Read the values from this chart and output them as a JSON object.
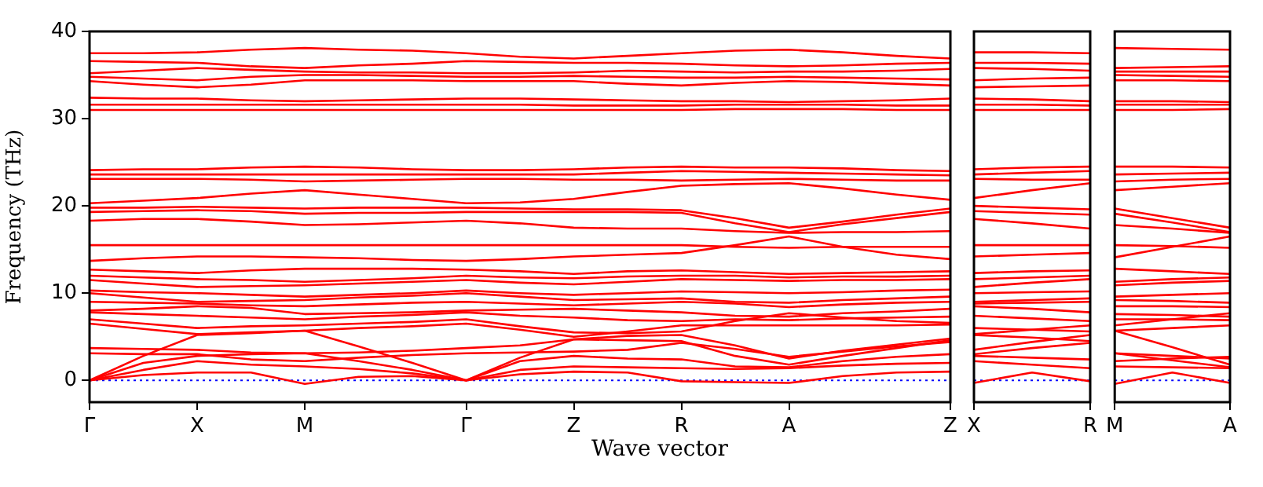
{
  "chart_data": [
    {
      "type": "line",
      "xlabel": "Wave vector",
      "ylabel": "Frequency (THz)",
      "ylim": [
        -2.5,
        40
      ],
      "yticks": [
        0,
        10,
        20,
        30,
        40
      ],
      "categories": [
        "Γ",
        null,
        "X",
        null,
        "M",
        null,
        null,
        "Γ",
        null,
        "Z",
        null,
        "R",
        null,
        "A",
        null,
        null,
        "Z"
      ],
      "grid": false,
      "legend": false,
      "marker": "none",
      "line_style": "solid",
      "ref_lines": [
        {
          "axis": "y",
          "value": 0,
          "color": "#0000ff",
          "line_style": "dotted"
        }
      ],
      "series": [
        {
          "color": "#ff0000",
          "values": [
            0,
            0.6,
            0.9,
            0.9,
            -0.4,
            0.4,
            0.5,
            0,
            0.7,
            1.0,
            0.9,
            -0.1,
            -0.2,
            -0.3,
            0.5,
            0.9,
            1.0
          ]
        },
        {
          "color": "#ff0000",
          "values": [
            0,
            1.2,
            2.2,
            1.8,
            1.6,
            1.3,
            0.8,
            0,
            1.2,
            1.6,
            1.5,
            1.4,
            1.3,
            1.4,
            1.7,
            1.9,
            2.0
          ]
        },
        {
          "color": "#ff0000",
          "values": [
            0,
            2.0,
            2.8,
            3.0,
            3.1,
            2.2,
            1.2,
            0,
            2.2,
            2.8,
            2.5,
            2.4,
            1.6,
            1.5,
            2.2,
            2.7,
            3.0
          ]
        },
        {
          "color": "#ff0000",
          "values": [
            0,
            2.8,
            5.2,
            5.4,
            5.7,
            3.9,
            2.0,
            0,
            2.6,
            4.7,
            4.6,
            4.5,
            2.8,
            1.8,
            2.8,
            3.7,
            4.6
          ]
        },
        {
          "color": "#ff0000",
          "values": [
            3.1,
            3.0,
            3.0,
            2.4,
            2.2,
            2.6,
            2.9,
            3.1,
            3.2,
            3.3,
            3.5,
            4.3,
            3.6,
            2.7,
            3.3,
            3.9,
            4.4
          ]
        },
        {
          "color": "#ff0000",
          "values": [
            3.7,
            3.6,
            3.5,
            3.2,
            3.1,
            3.2,
            3.4,
            3.7,
            4.0,
            4.7,
            5.1,
            5.2,
            4.0,
            2.5,
            3.4,
            4.1,
            4.8
          ]
        },
        {
          "color": "#ff0000",
          "values": [
            6.5,
            5.9,
            5.3,
            5.5,
            5.7,
            6.0,
            6.2,
            6.5,
            5.8,
            5.0,
            5.6,
            6.3,
            6.3,
            6.3,
            6.3,
            6.3,
            6.4
          ]
        },
        {
          "color": "#ff0000",
          "values": [
            7.0,
            6.5,
            6.0,
            6.2,
            6.3,
            6.5,
            6.7,
            7.0,
            6.2,
            5.5,
            5.4,
            5.6,
            6.8,
            7.7,
            7.2,
            6.8,
            6.6
          ]
        },
        {
          "color": "#ff0000",
          "values": [
            7.8,
            7.6,
            7.4,
            7.2,
            7.0,
            7.3,
            7.5,
            7.8,
            7.4,
            7.2,
            6.9,
            6.8,
            7.0,
            6.9,
            7.1,
            7.2,
            7.3
          ]
        },
        {
          "color": "#ff0000",
          "values": [
            8.0,
            8.2,
            8.5,
            8.3,
            7.6,
            7.7,
            7.8,
            8.0,
            8.1,
            8.2,
            8.0,
            7.8,
            7.4,
            7.3,
            7.7,
            7.9,
            8.2
          ]
        },
        {
          "color": "#ff0000",
          "values": [
            9.0,
            8.9,
            8.8,
            8.6,
            8.5,
            8.7,
            8.9,
            9.0,
            8.8,
            8.6,
            8.8,
            9.0,
            8.8,
            8.4,
            8.7,
            8.9,
            9.0
          ]
        },
        {
          "color": "#ff0000",
          "values": [
            10.0,
            9.5,
            9.0,
            9.1,
            9.2,
            9.5,
            9.7,
            10.0,
            9.6,
            9.2,
            9.3,
            9.4,
            9.0,
            8.9,
            9.2,
            9.4,
            9.6
          ]
        },
        {
          "color": "#ff0000",
          "values": [
            10.3,
            10.1,
            10.0,
            9.8,
            9.6,
            9.8,
            10.0,
            10.3,
            10.0,
            9.8,
            10.0,
            10.2,
            10.1,
            10.0,
            10.1,
            10.3,
            10.4
          ]
        },
        {
          "color": "#ff0000",
          "values": [
            11.5,
            11.1,
            10.7,
            10.8,
            10.9,
            11.1,
            11.3,
            11.5,
            11.2,
            11.0,
            11.3,
            11.6,
            11.5,
            11.4,
            11.5,
            11.5,
            11.6
          ]
        },
        {
          "color": "#ff0000",
          "values": [
            12.0,
            11.8,
            11.6,
            11.5,
            11.3,
            11.5,
            11.7,
            12.0,
            11.8,
            11.7,
            11.9,
            12.0,
            12.0,
            11.8,
            11.9,
            11.9,
            12.0
          ]
        },
        {
          "color": "#ff0000",
          "values": [
            12.7,
            12.5,
            12.3,
            12.6,
            12.8,
            12.8,
            12.8,
            12.7,
            12.5,
            12.2,
            12.5,
            12.6,
            12.4,
            12.2,
            12.3,
            12.4,
            12.5
          ]
        },
        {
          "color": "#ff0000",
          "values": [
            13.7,
            14.0,
            14.2,
            14.2,
            14.1,
            14.0,
            13.8,
            13.7,
            13.9,
            14.2,
            14.4,
            14.6,
            15.5,
            16.5,
            15.3,
            14.4,
            13.9
          ]
        },
        {
          "color": "#ff0000",
          "values": [
            15.5,
            15.5,
            15.5,
            15.5,
            15.5,
            15.5,
            15.5,
            15.5,
            15.5,
            15.5,
            15.5,
            15.5,
            15.3,
            15.2,
            15.3,
            15.3,
            15.3
          ]
        },
        {
          "color": "#ff0000",
          "values": [
            18.3,
            18.5,
            18.5,
            18.2,
            17.8,
            17.9,
            18.1,
            18.3,
            18.0,
            17.5,
            17.4,
            17.4,
            17.1,
            16.9,
            17.0,
            17.0,
            17.1
          ]
        },
        {
          "color": "#ff0000",
          "values": [
            19.3,
            19.4,
            19.5,
            19.4,
            19.1,
            19.2,
            19.2,
            19.3,
            19.3,
            19.3,
            19.3,
            19.2,
            18.0,
            17.0,
            17.9,
            18.6,
            19.3
          ]
        },
        {
          "color": "#ff0000",
          "values": [
            19.8,
            19.8,
            19.9,
            19.8,
            19.7,
            19.8,
            19.8,
            19.8,
            19.7,
            19.6,
            19.6,
            19.5,
            18.6,
            17.5,
            18.2,
            19.0,
            19.7
          ]
        },
        {
          "color": "#ff0000",
          "values": [
            20.3,
            20.6,
            20.9,
            21.4,
            21.8,
            21.3,
            20.8,
            20.3,
            20.4,
            20.8,
            21.6,
            22.3,
            22.5,
            22.6,
            22.0,
            21.3,
            20.7
          ]
        },
        {
          "color": "#ff0000",
          "values": [
            23.1,
            23.1,
            23.1,
            23.0,
            22.8,
            22.9,
            23.0,
            23.1,
            23.1,
            23.0,
            23.0,
            22.9,
            23.0,
            23.1,
            23.0,
            22.9,
            22.9
          ]
        },
        {
          "color": "#ff0000",
          "values": [
            23.6,
            23.6,
            23.6,
            23.6,
            23.6,
            23.6,
            23.6,
            23.6,
            23.6,
            23.6,
            23.8,
            24.0,
            23.9,
            23.8,
            23.7,
            23.6,
            23.5
          ]
        },
        {
          "color": "#ff0000",
          "values": [
            24.1,
            24.2,
            24.2,
            24.4,
            24.5,
            24.4,
            24.2,
            24.1,
            24.1,
            24.2,
            24.4,
            24.5,
            24.4,
            24.4,
            24.3,
            24.1,
            24.0
          ]
        },
        {
          "color": "#ff0000",
          "values": [
            31.0,
            31.0,
            31.0,
            31.0,
            31.0,
            31.0,
            31.0,
            31.0,
            31.0,
            31.0,
            31.0,
            31.0,
            31.1,
            31.1,
            31.1,
            31.0,
            31.0
          ]
        },
        {
          "color": "#ff0000",
          "values": [
            31.6,
            31.6,
            31.6,
            31.6,
            31.6,
            31.6,
            31.6,
            31.6,
            31.6,
            31.5,
            31.5,
            31.5,
            31.6,
            31.6,
            31.6,
            31.5,
            31.5
          ]
        },
        {
          "color": "#ff0000",
          "values": [
            32.4,
            32.3,
            32.3,
            32.1,
            32.0,
            32.1,
            32.2,
            32.3,
            32.3,
            32.2,
            32.1,
            32.0,
            32.0,
            31.9,
            32.0,
            32.1,
            32.3
          ]
        },
        {
          "color": "#ff0000",
          "values": [
            34.3,
            33.9,
            33.6,
            33.9,
            34.4,
            34.4,
            34.4,
            34.3,
            34.3,
            34.3,
            34.0,
            33.8,
            34.1,
            34.3,
            34.2,
            34.0,
            33.8
          ]
        },
        {
          "color": "#ff0000",
          "values": [
            34.8,
            34.6,
            34.4,
            34.8,
            35.0,
            35.0,
            34.9,
            34.8,
            34.8,
            34.9,
            34.8,
            34.7,
            34.7,
            34.8,
            34.7,
            34.6,
            34.5
          ]
        },
        {
          "color": "#ff0000",
          "values": [
            35.2,
            35.5,
            35.8,
            35.6,
            35.4,
            35.3,
            35.3,
            35.2,
            35.2,
            35.3,
            35.5,
            35.4,
            35.3,
            35.4,
            35.4,
            35.5,
            35.7
          ]
        },
        {
          "color": "#ff0000",
          "values": [
            36.6,
            36.5,
            36.4,
            36.0,
            35.8,
            36.1,
            36.3,
            36.6,
            36.5,
            36.4,
            36.4,
            36.3,
            36.1,
            36.0,
            36.1,
            36.3,
            36.4
          ]
        },
        {
          "color": "#ff0000",
          "values": [
            37.5,
            37.5,
            37.6,
            37.9,
            38.1,
            37.9,
            37.8,
            37.5,
            37.1,
            36.9,
            37.2,
            37.5,
            37.8,
            37.9,
            37.6,
            37.2,
            36.9
          ]
        }
      ]
    },
    {
      "type": "line",
      "ylim": [
        -2.5,
        40
      ],
      "yticks": [
        0,
        10,
        20,
        30,
        40
      ],
      "tick_labels": "x",
      "categories": [
        "X",
        null,
        "R"
      ],
      "grid": false,
      "legend": false,
      "marker": "none",
      "line_style": "solid",
      "ref_lines": [
        {
          "axis": "y",
          "value": 0,
          "color": "#0000ff",
          "line_style": "dotted"
        }
      ],
      "series": [
        {
          "color": "#ff0000",
          "values": [
            -0.3,
            0.9,
            -0.1
          ]
        },
        {
          "color": "#ff0000",
          "values": [
            2.2,
            1.8,
            1.4
          ]
        },
        {
          "color": "#ff0000",
          "values": [
            2.8,
            2.6,
            2.4
          ]
        },
        {
          "color": "#ff0000",
          "values": [
            5.2,
            4.9,
            4.5
          ]
        },
        {
          "color": "#ff0000",
          "values": [
            3.0,
            3.7,
            4.3
          ]
        },
        {
          "color": "#ff0000",
          "values": [
            3.5,
            4.4,
            5.2
          ]
        },
        {
          "color": "#ff0000",
          "values": [
            5.3,
            5.8,
            6.3
          ]
        },
        {
          "color": "#ff0000",
          "values": [
            6.0,
            5.8,
            5.6
          ]
        },
        {
          "color": "#ff0000",
          "values": [
            7.4,
            7.1,
            6.8
          ]
        },
        {
          "color": "#ff0000",
          "values": [
            8.5,
            8.2,
            7.8
          ]
        },
        {
          "color": "#ff0000",
          "values": [
            8.8,
            8.9,
            9.0
          ]
        },
        {
          "color": "#ff0000",
          "values": [
            9.0,
            9.2,
            9.4
          ]
        },
        {
          "color": "#ff0000",
          "values": [
            10.0,
            10.1,
            10.2
          ]
        },
        {
          "color": "#ff0000",
          "values": [
            10.7,
            11.2,
            11.6
          ]
        },
        {
          "color": "#ff0000",
          "values": [
            11.6,
            11.8,
            12.0
          ]
        },
        {
          "color": "#ff0000",
          "values": [
            12.3,
            12.5,
            12.6
          ]
        },
        {
          "color": "#ff0000",
          "values": [
            14.2,
            14.4,
            14.6
          ]
        },
        {
          "color": "#ff0000",
          "values": [
            15.5,
            15.5,
            15.5
          ]
        },
        {
          "color": "#ff0000",
          "values": [
            18.5,
            18.0,
            17.4
          ]
        },
        {
          "color": "#ff0000",
          "values": [
            19.4,
            19.2,
            19.0
          ]
        },
        {
          "color": "#ff0000",
          "values": [
            20.0,
            19.8,
            19.6
          ]
        },
        {
          "color": "#ff0000",
          "values": [
            20.9,
            21.8,
            22.6
          ]
        },
        {
          "color": "#ff0000",
          "values": [
            23.1,
            23.0,
            23.0
          ]
        },
        {
          "color": "#ff0000",
          "values": [
            23.6,
            23.8,
            24.0
          ]
        },
        {
          "color": "#ff0000",
          "values": [
            24.2,
            24.4,
            24.5
          ]
        },
        {
          "color": "#ff0000",
          "values": [
            31.0,
            31.0,
            31.0
          ]
        },
        {
          "color": "#ff0000",
          "values": [
            31.6,
            31.6,
            31.5
          ]
        },
        {
          "color": "#ff0000",
          "values": [
            32.3,
            32.2,
            32.0
          ]
        },
        {
          "color": "#ff0000",
          "values": [
            33.6,
            33.7,
            33.8
          ]
        },
        {
          "color": "#ff0000",
          "values": [
            34.4,
            34.6,
            34.7
          ]
        },
        {
          "color": "#ff0000",
          "values": [
            35.8,
            35.7,
            35.5
          ]
        },
        {
          "color": "#ff0000",
          "values": [
            36.4,
            36.4,
            36.3
          ]
        },
        {
          "color": "#ff0000",
          "values": [
            37.6,
            37.6,
            37.5
          ]
        }
      ]
    },
    {
      "type": "line",
      "ylim": [
        -2.5,
        40
      ],
      "yticks": [
        0,
        10,
        20,
        30,
        40
      ],
      "tick_labels": "x",
      "categories": [
        "M",
        null,
        "A"
      ],
      "grid": false,
      "legend": false,
      "marker": "none",
      "line_style": "solid",
      "ref_lines": [
        {
          "axis": "y",
          "value": 0,
          "color": "#0000ff",
          "line_style": "dotted"
        }
      ],
      "series": [
        {
          "color": "#ff0000",
          "values": [
            -0.4,
            0.9,
            -0.3
          ]
        },
        {
          "color": "#ff0000",
          "values": [
            1.6,
            1.5,
            1.4
          ]
        },
        {
          "color": "#ff0000",
          "values": [
            3.1,
            2.3,
            1.5
          ]
        },
        {
          "color": "#ff0000",
          "values": [
            5.7,
            3.8,
            1.8
          ]
        },
        {
          "color": "#ff0000",
          "values": [
            2.2,
            2.5,
            2.7
          ]
        },
        {
          "color": "#ff0000",
          "values": [
            3.1,
            2.8,
            2.5
          ]
        },
        {
          "color": "#ff0000",
          "values": [
            5.7,
            6.0,
            6.3
          ]
        },
        {
          "color": "#ff0000",
          "values": [
            6.3,
            7.0,
            7.7
          ]
        },
        {
          "color": "#ff0000",
          "values": [
            7.0,
            7.0,
            6.9
          ]
        },
        {
          "color": "#ff0000",
          "values": [
            7.6,
            7.5,
            7.3
          ]
        },
        {
          "color": "#ff0000",
          "values": [
            8.5,
            8.5,
            8.4
          ]
        },
        {
          "color": "#ff0000",
          "values": [
            9.2,
            9.1,
            8.9
          ]
        },
        {
          "color": "#ff0000",
          "values": [
            9.6,
            9.8,
            10.0
          ]
        },
        {
          "color": "#ff0000",
          "values": [
            10.9,
            11.2,
            11.4
          ]
        },
        {
          "color": "#ff0000",
          "values": [
            11.3,
            11.6,
            11.8
          ]
        },
        {
          "color": "#ff0000",
          "values": [
            12.8,
            12.5,
            12.2
          ]
        },
        {
          "color": "#ff0000",
          "values": [
            14.1,
            15.3,
            16.5
          ]
        },
        {
          "color": "#ff0000",
          "values": [
            15.5,
            15.4,
            15.2
          ]
        },
        {
          "color": "#ff0000",
          "values": [
            17.8,
            17.4,
            16.9
          ]
        },
        {
          "color": "#ff0000",
          "values": [
            19.1,
            18.1,
            17.0
          ]
        },
        {
          "color": "#ff0000",
          "values": [
            19.7,
            18.6,
            17.5
          ]
        },
        {
          "color": "#ff0000",
          "values": [
            21.8,
            22.2,
            22.6
          ]
        },
        {
          "color": "#ff0000",
          "values": [
            22.8,
            23.0,
            23.1
          ]
        },
        {
          "color": "#ff0000",
          "values": [
            23.6,
            23.7,
            23.8
          ]
        },
        {
          "color": "#ff0000",
          "values": [
            24.5,
            24.5,
            24.4
          ]
        },
        {
          "color": "#ff0000",
          "values": [
            31.0,
            31.0,
            31.1
          ]
        },
        {
          "color": "#ff0000",
          "values": [
            31.6,
            31.6,
            31.6
          ]
        },
        {
          "color": "#ff0000",
          "values": [
            32.0,
            32.0,
            31.9
          ]
        },
        {
          "color": "#ff0000",
          "values": [
            34.4,
            34.4,
            34.3
          ]
        },
        {
          "color": "#ff0000",
          "values": [
            35.0,
            34.9,
            34.8
          ]
        },
        {
          "color": "#ff0000",
          "values": [
            35.4,
            35.4,
            35.4
          ]
        },
        {
          "color": "#ff0000",
          "values": [
            35.8,
            35.9,
            36.0
          ]
        },
        {
          "color": "#ff0000",
          "values": [
            38.1,
            38.0,
            37.9
          ]
        }
      ]
    }
  ]
}
